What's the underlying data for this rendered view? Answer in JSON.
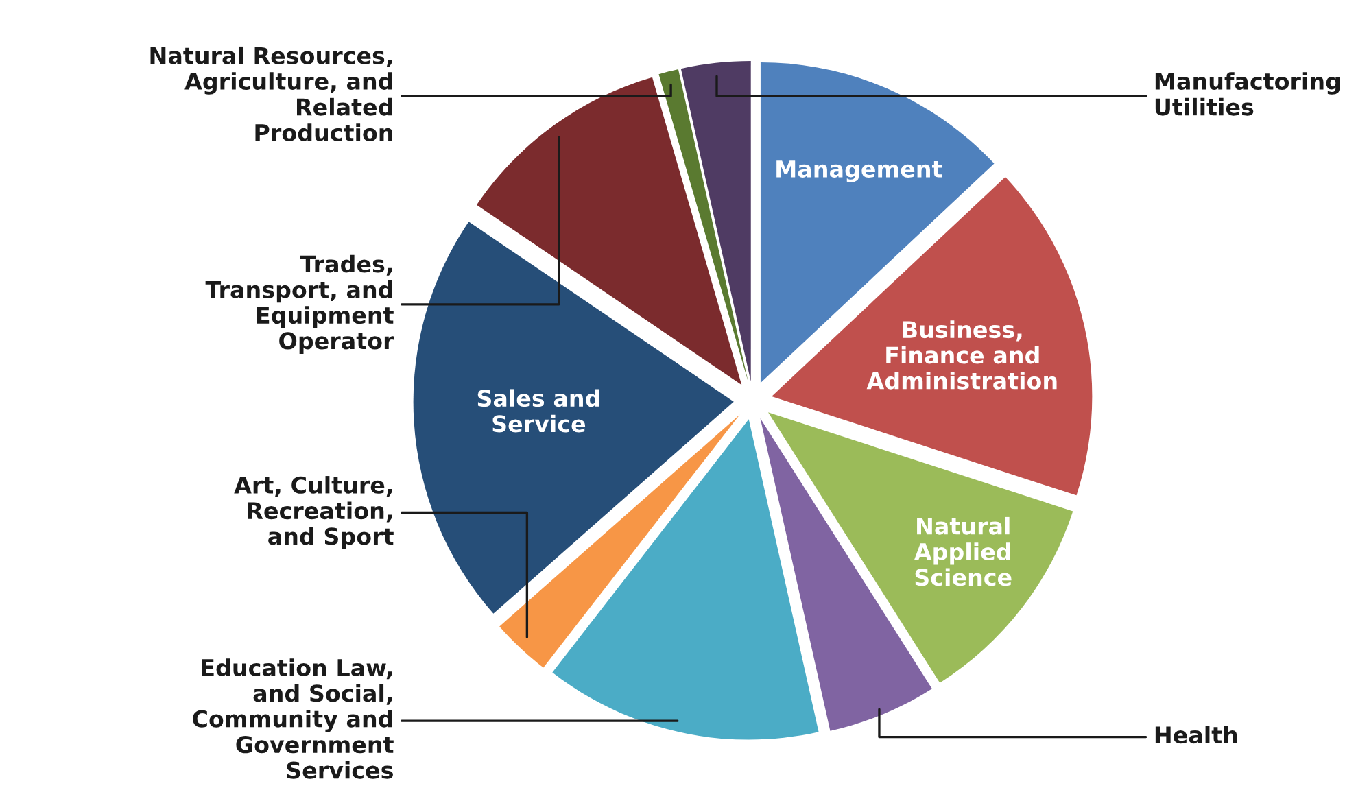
{
  "chart_data": {
    "type": "pie",
    "categories": [
      "Management",
      "Business,\nFinance and\nAdministration",
      "Natural\nApplied\nScience",
      "Health",
      "Education Law,\nand Social,\nCommunity and\nGovernment\nServices",
      "Art, Culture,\nRecreation,\nand Sport",
      "Sales and\nService",
      "Trades,\nTransport, and\nEquipment\nOperator",
      "Natural Resources,\nAgriculture, and\nRelated\nProduction",
      "Manufactoring\nUtilities"
    ],
    "values": [
      13,
      17,
      11,
      5.5,
      14,
      3,
      21,
      11,
      1,
      3.5
    ],
    "colors": [
      "#4f81bd",
      "#c0504d",
      "#9bbb59",
      "#8064a2",
      "#4bacc6",
      "#f79646",
      "#264e78",
      "#7b2b2d",
      "#5a7a30",
      "#4f3b63"
    ],
    "legend": false
  }
}
